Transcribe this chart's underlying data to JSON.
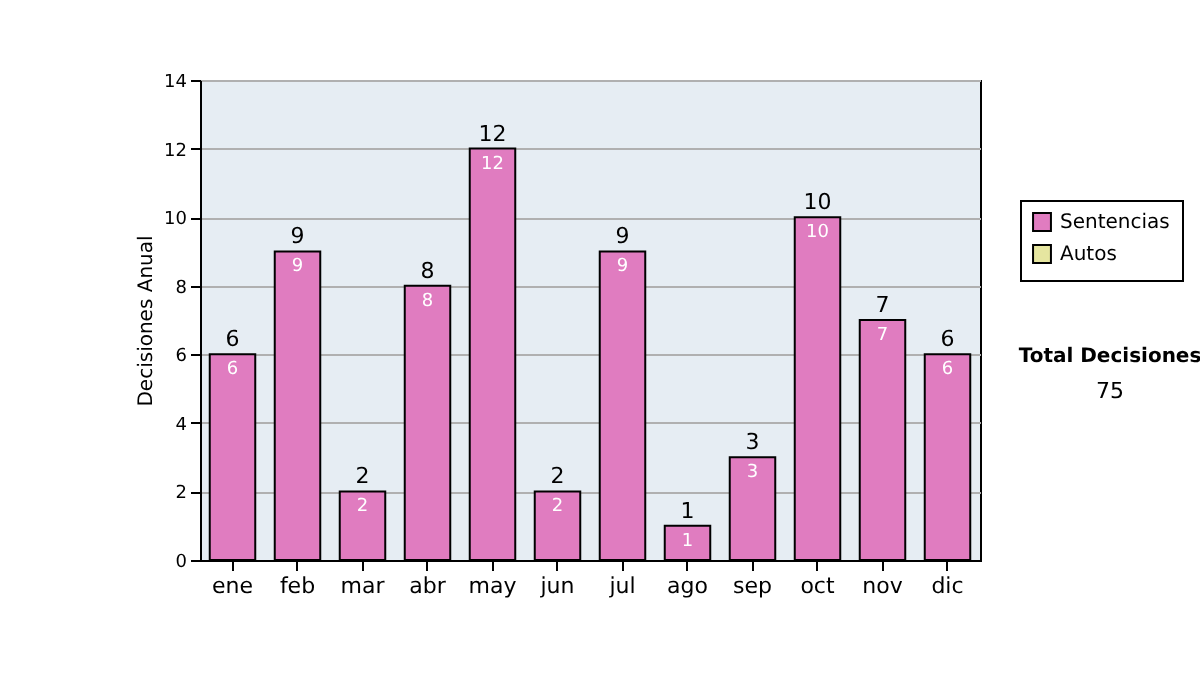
{
  "chart_data": {
    "type": "bar",
    "ylabel": "Decisiones Anual",
    "categories": [
      "ene",
      "feb",
      "mar",
      "abr",
      "may",
      "jun",
      "jul",
      "ago",
      "sep",
      "oct",
      "nov",
      "dic"
    ],
    "series": [
      {
        "name": "Sentencias",
        "color": "#e07cc0",
        "values": [
          6,
          9,
          2,
          8,
          12,
          2,
          9,
          1,
          3,
          10,
          7,
          6
        ],
        "value_labels": [
          "6",
          "9",
          "2",
          "8",
          "12",
          "2",
          "9",
          "1",
          "3",
          "10",
          "7",
          "6"
        ]
      },
      {
        "name": "Autos",
        "color": "#e6e6a0",
        "values": [
          null,
          null,
          null,
          null,
          null,
          null,
          null,
          null,
          null,
          null,
          null,
          null
        ]
      }
    ],
    "ylim": [
      0,
      14
    ],
    "yticks": [
      0,
      2,
      4,
      6,
      8,
      10,
      12,
      14
    ],
    "grid": "y",
    "legend": "right",
    "stacked": true,
    "totals": [
      "6",
      "9",
      "2",
      "8",
      "12",
      "2",
      "9",
      "1",
      "3",
      "10",
      "7",
      "6"
    ],
    "annotations": [
      "Total Decisiones",
      "75"
    ]
  }
}
